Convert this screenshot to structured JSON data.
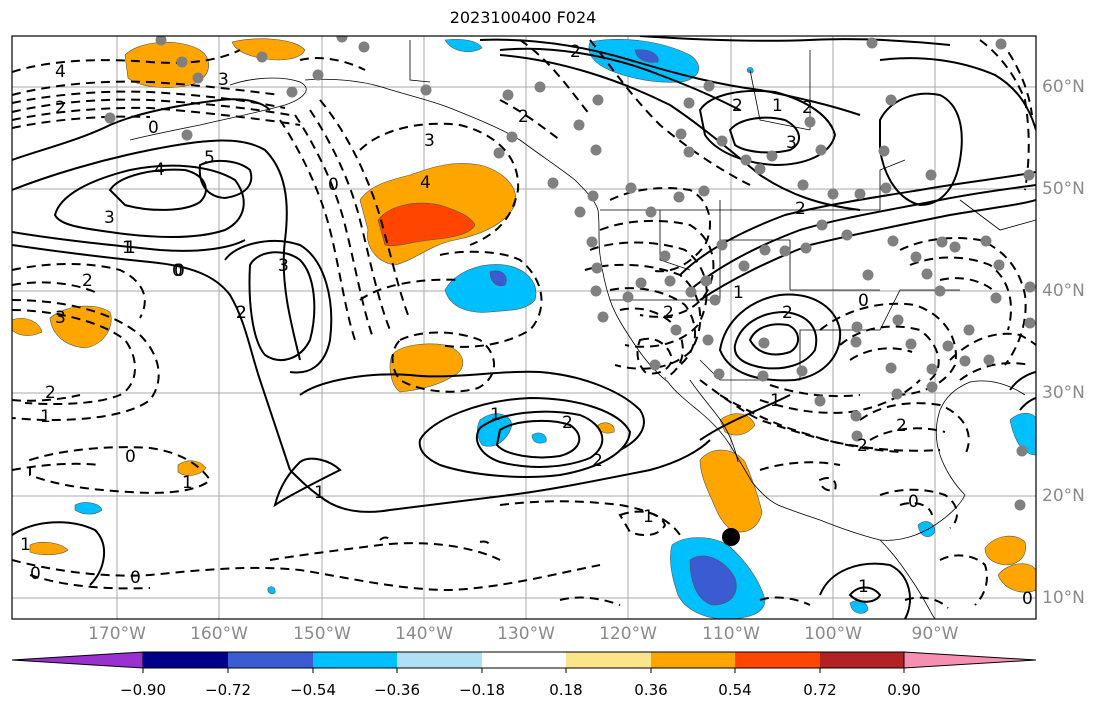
{
  "title": "2023100400 F024",
  "lon_labels": [
    "170°W",
    "160°W",
    "150°W",
    "140°W",
    "130°W",
    "120°W",
    "110°W",
    "100°W",
    "90°W"
  ],
  "lat_labels": [
    "60°N",
    "50°N",
    "40°N",
    "30°N",
    "20°N",
    "10°N"
  ],
  "colorbar": {
    "tick_labels": [
      "−0.90",
      "−0.72",
      "−0.54",
      "−0.36",
      "−0.18",
      "0.18",
      "0.36",
      "0.54",
      "0.72",
      "0.90"
    ],
    "colors": [
      "#9b30d0",
      "#00008b",
      "#3a5bd1",
      "#00bfff",
      "#b0e0f5",
      "#ffffff",
      "#fbe58a",
      "#ffa500",
      "#ff4500",
      "#b22222",
      "#f78fb3"
    ]
  },
  "contour_labels": [
    "4",
    "3",
    "2",
    "0",
    "5",
    "4",
    "3",
    "1",
    "0",
    "2",
    "3",
    "3",
    "2",
    "4",
    "2",
    "2",
    "1",
    "2",
    "2",
    "3",
    "3",
    "2",
    "2",
    "2",
    "2",
    "2",
    "1",
    "0",
    "1",
    "0",
    "0",
    "1",
    "1",
    "2",
    "0",
    "1",
    "2",
    "3",
    "2",
    "1",
    "2",
    "1",
    "0",
    "1",
    "0",
    "0",
    "1",
    "1",
    "0"
  ],
  "marker": "filled-circle"
}
